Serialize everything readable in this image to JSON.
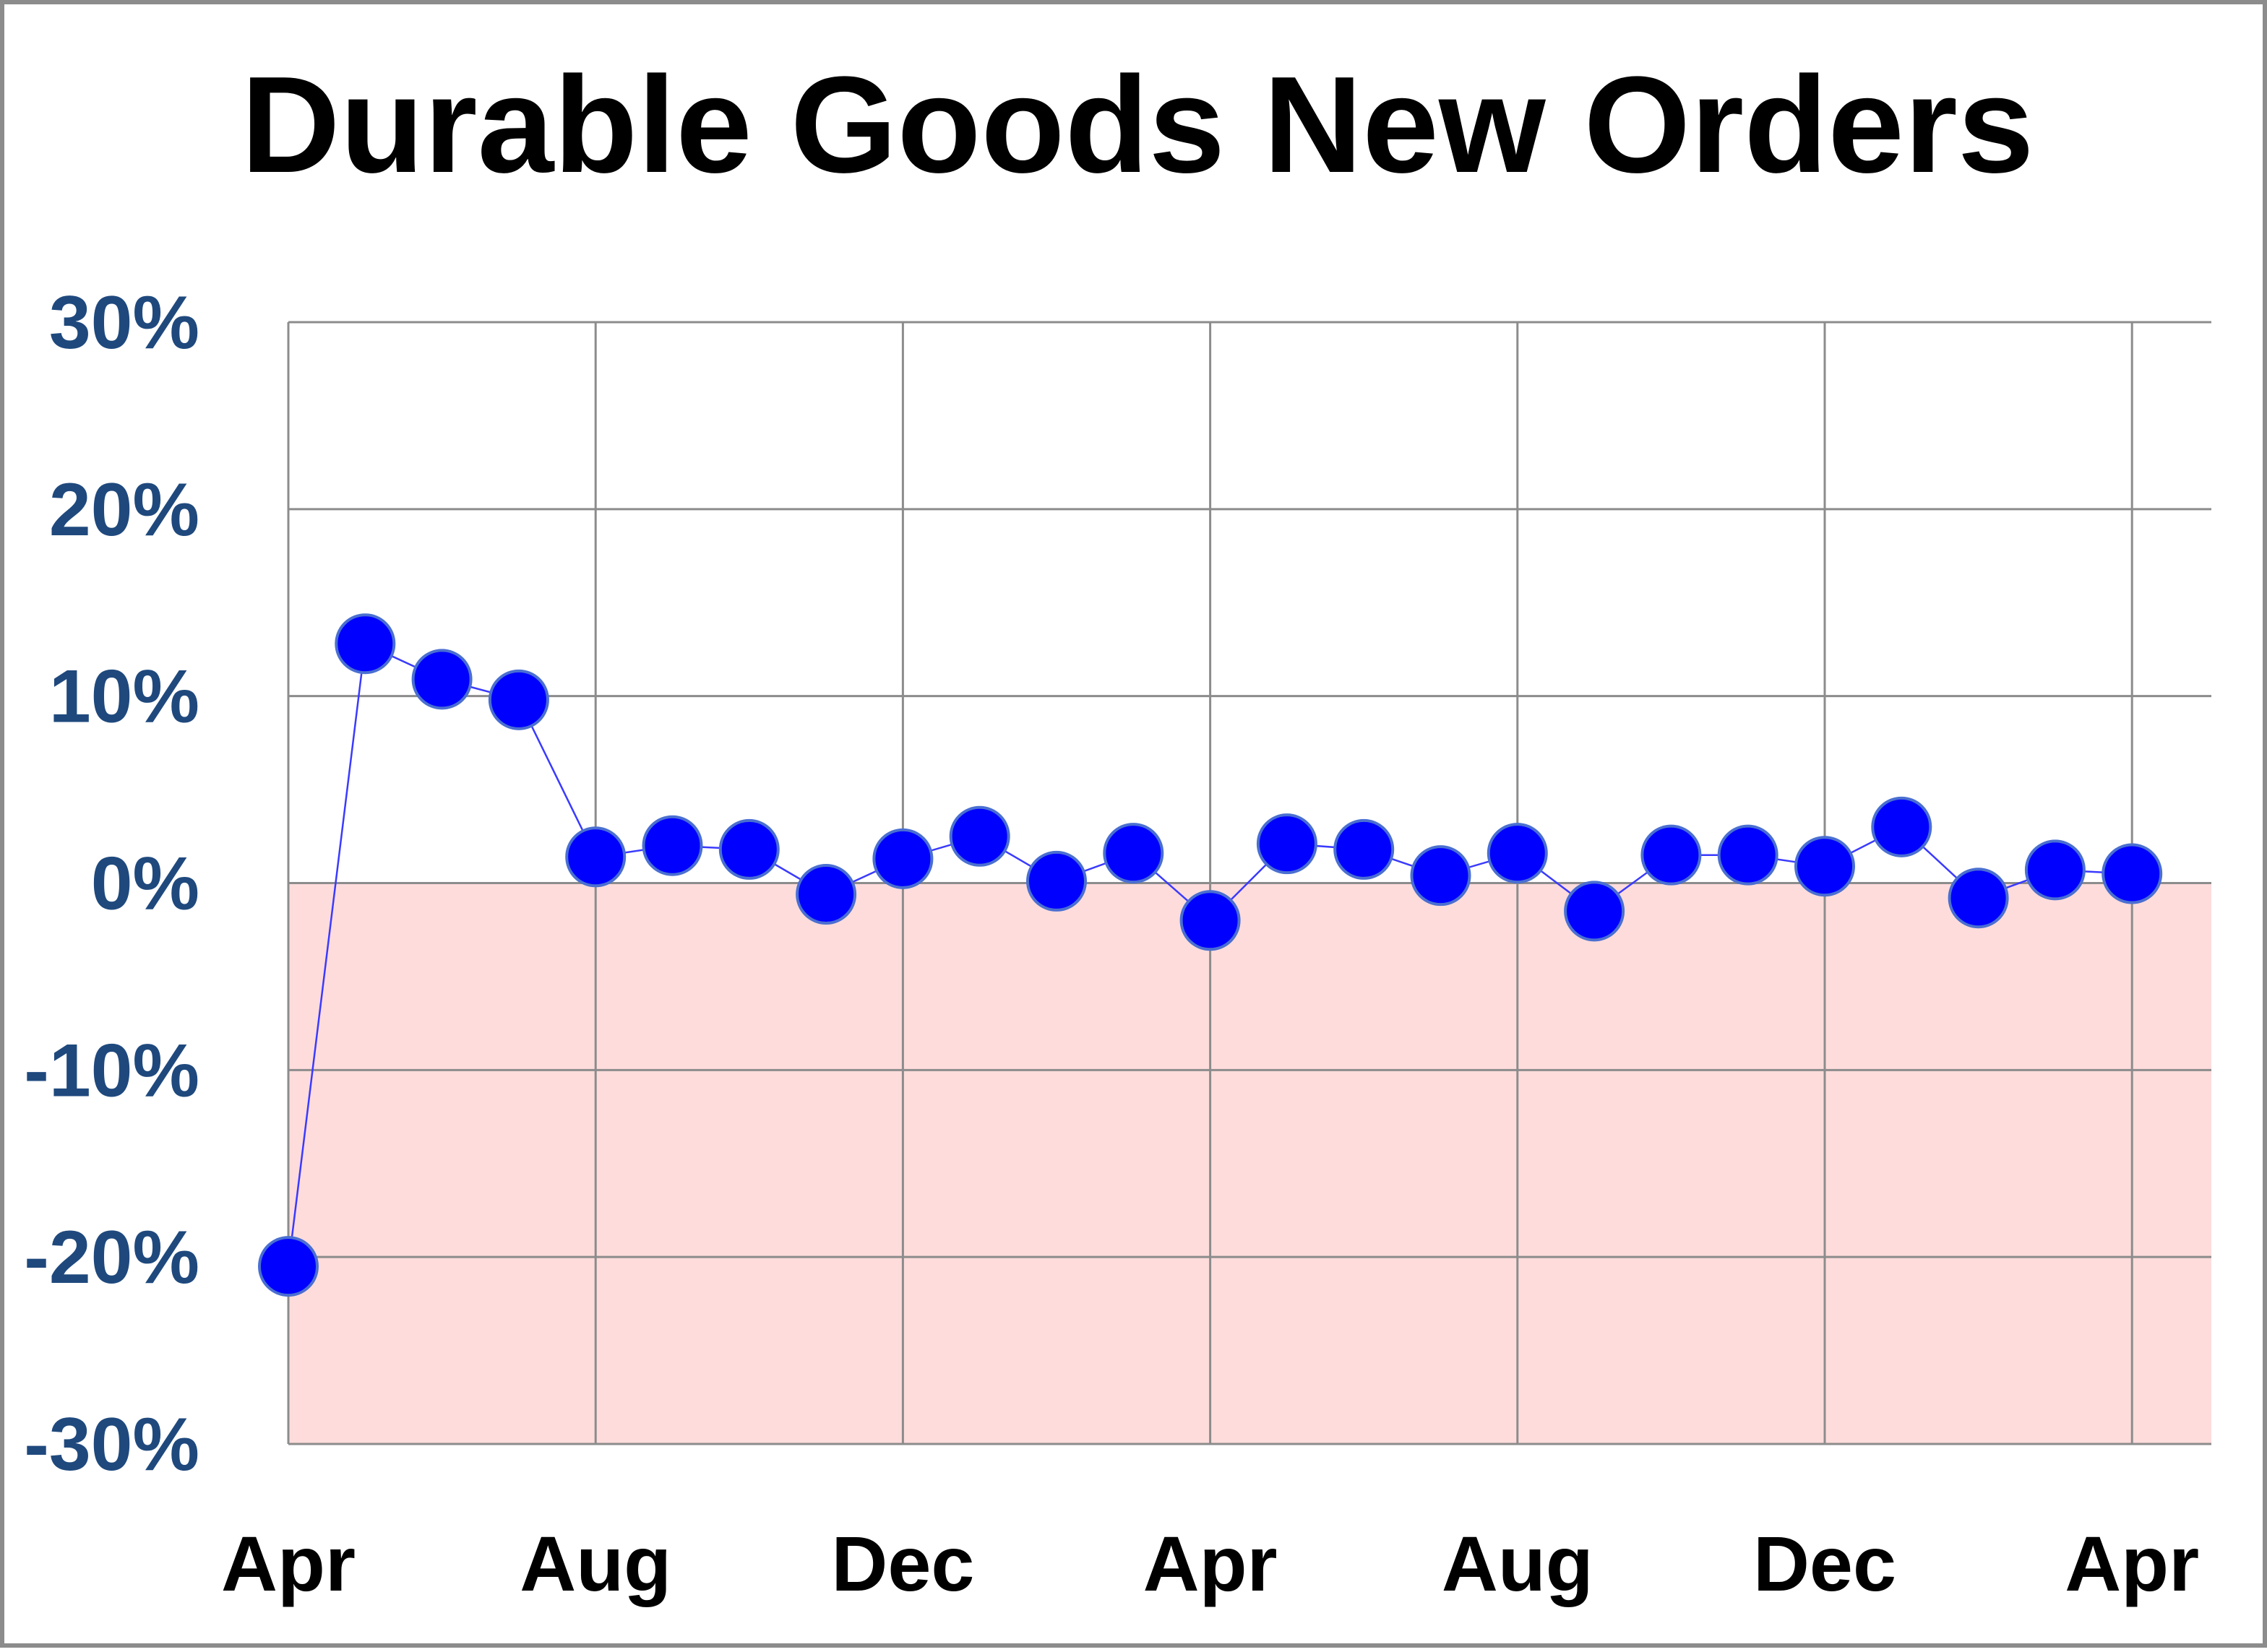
{
  "chart_data": {
    "type": "line",
    "title": "Durable Goods New Orders",
    "xlabel": "",
    "ylabel": "",
    "ylim": [
      -30,
      30
    ],
    "y_ticks": [
      {
        "value": 30,
        "label": "30%"
      },
      {
        "value": 20,
        "label": "20%"
      },
      {
        "value": 10,
        "label": "10%"
      },
      {
        "value": 0,
        "label": "0%"
      },
      {
        "value": -10,
        "label": "-10%"
      },
      {
        "value": -20,
        "label": "-20%"
      },
      {
        "value": -30,
        "label": "-30%"
      }
    ],
    "x_ticks": [
      {
        "index": 0,
        "label": "Apr"
      },
      {
        "index": 4,
        "label": "Aug"
      },
      {
        "index": 8,
        "label": "Dec"
      },
      {
        "index": 12,
        "label": "Apr"
      },
      {
        "index": 16,
        "label": "Aug"
      },
      {
        "index": 20,
        "label": "Dec"
      },
      {
        "index": 24,
        "label": "Apr"
      }
    ],
    "x_count": 25,
    "grid": true,
    "negative_region_shading": true,
    "series": [
      {
        "values": [
          -20.5,
          12.8,
          10.9,
          9.8,
          1.4,
          2.0,
          1.8,
          -0.6,
          1.3,
          2.5,
          0.1,
          1.6,
          -2.0,
          2.1,
          1.8,
          0.4,
          1.6,
          -1.5,
          1.5,
          1.5,
          0.9,
          3.0,
          -0.8,
          0.7,
          0.5
        ]
      }
    ],
    "colors": {
      "marker_fill": "#0000ff",
      "marker_stroke": "#4a6fd1",
      "line": "#3a3aff",
      "negative_fill": "#ffdcdc",
      "grid": "#8c8c8c",
      "ytick_text": "#1f497d"
    }
  }
}
